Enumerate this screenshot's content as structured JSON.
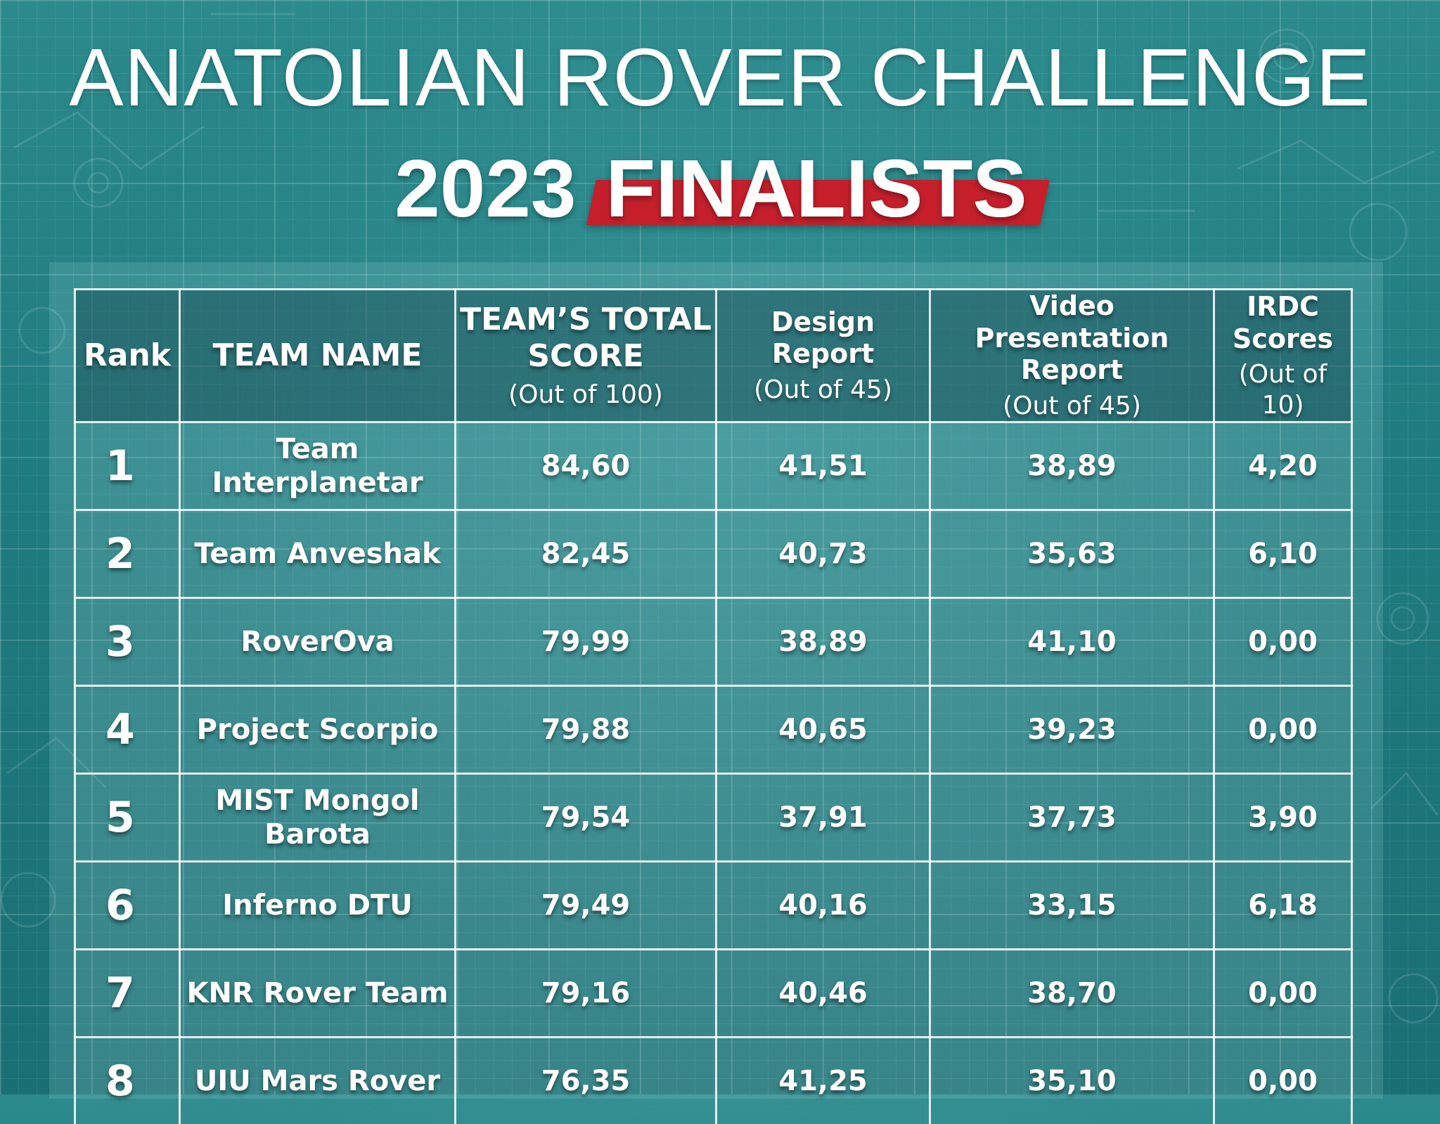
{
  "title": {
    "line1": "ANATOLIAN ROVER CHALLENGE",
    "year": "2023",
    "highlight": "FINALISTS"
  },
  "colors": {
    "background": "#1f7c80",
    "highlight_bar": "#c51f2c",
    "text": "#ffffff"
  },
  "table": {
    "headers": [
      {
        "label": "Rank",
        "sub": ""
      },
      {
        "label": "TEAM NAME",
        "sub": ""
      },
      {
        "label": "TEAM’S TOTAL SCORE",
        "sub": "(Out of 100)"
      },
      {
        "label": "Design Report",
        "sub": "(Out of 45)"
      },
      {
        "label": "Video Presentation Report",
        "sub": "(Out of 45)"
      },
      {
        "label": "IRDC Scores",
        "sub": "(Out of 10)"
      }
    ],
    "rows": [
      {
        "rank": "1",
        "team": "Team Interplanetar",
        "total": "84,60",
        "design": "41,51",
        "video": "38,89",
        "irdc": "4,20"
      },
      {
        "rank": "2",
        "team": "Team Anveshak",
        "total": "82,45",
        "design": "40,73",
        "video": "35,63",
        "irdc": "6,10"
      },
      {
        "rank": "3",
        "team": "RoverOva",
        "total": "79,99",
        "design": "38,89",
        "video": "41,10",
        "irdc": "0,00"
      },
      {
        "rank": "4",
        "team": "Project Scorpio",
        "total": "79,88",
        "design": "40,65",
        "video": "39,23",
        "irdc": "0,00"
      },
      {
        "rank": "5",
        "team": "MIST Mongol Barota",
        "total": "79,54",
        "design": "37,91",
        "video": "37,73",
        "irdc": "3,90"
      },
      {
        "rank": "6",
        "team": "Inferno DTU",
        "total": "79,49",
        "design": "40,16",
        "video": "33,15",
        "irdc": "6,18"
      },
      {
        "rank": "7",
        "team": "KNR Rover Team",
        "total": "79,16",
        "design": "40,46",
        "video": "38,70",
        "irdc": "0,00"
      },
      {
        "rank": "8",
        "team": "UIU Mars Rover",
        "total": "76,35",
        "design": "41,25",
        "video": "35,10",
        "irdc": "0,00"
      }
    ]
  }
}
